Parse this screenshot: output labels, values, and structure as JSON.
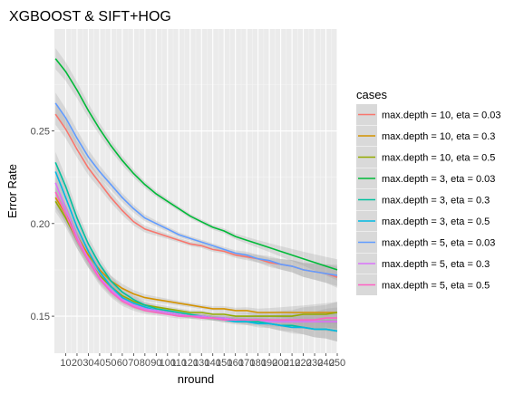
{
  "chart_data": {
    "type": "line",
    "title": "XGBOOST & SIFT+HOG",
    "xlabel": "nround",
    "ylabel": "Error Rate",
    "xlim": [
      0,
      250
    ],
    "ylim": [
      0.13,
      0.305
    ],
    "x_ticks": [
      10,
      20,
      30,
      40,
      50,
      60,
      70,
      80,
      90,
      100,
      110,
      120,
      130,
      140,
      150,
      160,
      170,
      180,
      190,
      200,
      210,
      220,
      230,
      240,
      250
    ],
    "y_ticks": [
      0.15,
      0.2,
      0.25
    ],
    "y_tick_labels": [
      "0.15",
      "0.20",
      "0.25"
    ],
    "grid": true,
    "confidence_bands": true,
    "legend": {
      "title": "cases",
      "position": "right"
    },
    "x": [
      1,
      10,
      20,
      30,
      40,
      50,
      60,
      70,
      80,
      90,
      100,
      110,
      120,
      130,
      140,
      150,
      160,
      170,
      180,
      190,
      200,
      210,
      220,
      230,
      240,
      250
    ],
    "series": [
      {
        "name": "max.depth = 10, eta = 0.03",
        "color": "#F8766D",
        "values": [
          0.259,
          0.251,
          0.24,
          0.23,
          0.222,
          0.214,
          0.207,
          0.201,
          0.197,
          0.195,
          0.193,
          0.191,
          0.189,
          0.188,
          0.186,
          0.185,
          0.183,
          0.182,
          0.181,
          0.179,
          0.178,
          0.177,
          0.175,
          0.174,
          0.173,
          0.171
        ]
      },
      {
        "name": "max.depth = 10, eta = 0.3",
        "color": "#D39200",
        "values": [
          0.214,
          0.205,
          0.193,
          0.183,
          0.175,
          0.169,
          0.165,
          0.162,
          0.16,
          0.159,
          0.158,
          0.157,
          0.156,
          0.155,
          0.154,
          0.154,
          0.153,
          0.153,
          0.152,
          0.152,
          0.152,
          0.152,
          0.152,
          0.152,
          0.152,
          0.152
        ]
      },
      {
        "name": "max.depth = 10, eta = 0.5",
        "color": "#93AA00",
        "values": [
          0.212,
          0.203,
          0.191,
          0.18,
          0.172,
          0.166,
          0.161,
          0.158,
          0.156,
          0.155,
          0.154,
          0.153,
          0.152,
          0.152,
          0.151,
          0.151,
          0.15,
          0.15,
          0.15,
          0.15,
          0.15,
          0.15,
          0.151,
          0.151,
          0.151,
          0.152
        ]
      },
      {
        "name": "max.depth = 3, eta = 0.03",
        "color": "#00BA38",
        "values": [
          0.289,
          0.282,
          0.272,
          0.261,
          0.251,
          0.242,
          0.234,
          0.227,
          0.221,
          0.216,
          0.212,
          0.208,
          0.204,
          0.201,
          0.198,
          0.196,
          0.193,
          0.191,
          0.189,
          0.187,
          0.185,
          0.183,
          0.181,
          0.179,
          0.177,
          0.175
        ]
      },
      {
        "name": "max.depth = 3, eta = 0.3",
        "color": "#00C19F",
        "values": [
          0.233,
          0.22,
          0.203,
          0.189,
          0.178,
          0.169,
          0.163,
          0.159,
          0.156,
          0.154,
          0.153,
          0.152,
          0.151,
          0.15,
          0.149,
          0.149,
          0.148,
          0.147,
          0.147,
          0.146,
          0.145,
          0.145,
          0.144,
          0.143,
          0.143,
          0.142
        ]
      },
      {
        "name": "max.depth = 3, eta = 0.5",
        "color": "#00B9E3",
        "values": [
          0.228,
          0.214,
          0.198,
          0.185,
          0.174,
          0.166,
          0.16,
          0.157,
          0.155,
          0.153,
          0.152,
          0.151,
          0.15,
          0.15,
          0.149,
          0.148,
          0.147,
          0.147,
          0.146,
          0.146,
          0.145,
          0.144,
          0.144,
          0.143,
          0.143,
          0.142
        ]
      },
      {
        "name": "max.depth = 5, eta = 0.03",
        "color": "#619CFF",
        "values": [
          0.265,
          0.257,
          0.246,
          0.236,
          0.228,
          0.221,
          0.214,
          0.208,
          0.203,
          0.2,
          0.197,
          0.194,
          0.192,
          0.19,
          0.188,
          0.186,
          0.184,
          0.183,
          0.181,
          0.18,
          0.178,
          0.177,
          0.175,
          0.174,
          0.173,
          0.172
        ]
      },
      {
        "name": "max.depth = 5, eta = 0.3",
        "color": "#DB72FB",
        "values": [
          0.222,
          0.208,
          0.193,
          0.181,
          0.171,
          0.164,
          0.159,
          0.156,
          0.154,
          0.153,
          0.152,
          0.151,
          0.15,
          0.15,
          0.149,
          0.149,
          0.148,
          0.148,
          0.148,
          0.147,
          0.147,
          0.147,
          0.147,
          0.147,
          0.147,
          0.147
        ]
      },
      {
        "name": "max.depth = 5, eta = 0.5",
        "color": "#FF61C3",
        "values": [
          0.217,
          0.205,
          0.191,
          0.18,
          0.17,
          0.163,
          0.158,
          0.155,
          0.153,
          0.152,
          0.151,
          0.15,
          0.15,
          0.149,
          0.149,
          0.148,
          0.148,
          0.148,
          0.148,
          0.148,
          0.148,
          0.148,
          0.148,
          0.148,
          0.149,
          0.149
        ]
      }
    ]
  }
}
